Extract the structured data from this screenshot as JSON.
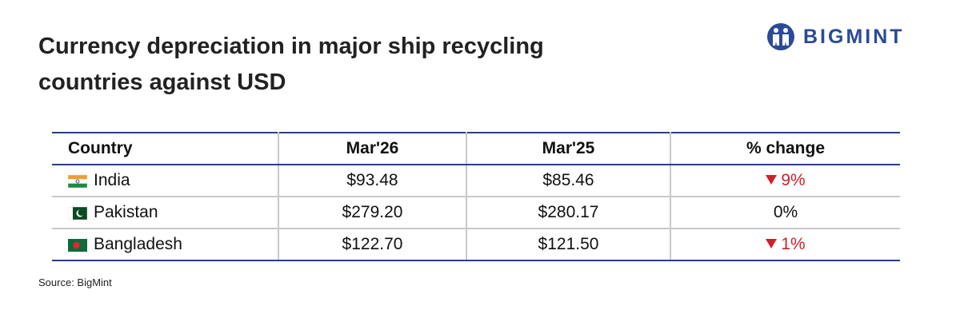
{
  "header": {
    "title": "Currency depreciation in major ship recycling countries against USD",
    "logo": "BIGMINT"
  },
  "table": {
    "columns": [
      "Country",
      "Mar'26",
      "Mar'25",
      "% change"
    ],
    "rows": [
      [
        "India",
        "$93.48",
        "$85.46",
        "9%"
      ],
      [
        "Pakistan",
        "$279.20",
        "$280.17",
        "0%"
      ],
      [
        "Bangladesh",
        "$122.70",
        "$121.50",
        "1%"
      ]
    ]
  },
  "footer": {
    "source": "Source: BigMint"
  }
}
